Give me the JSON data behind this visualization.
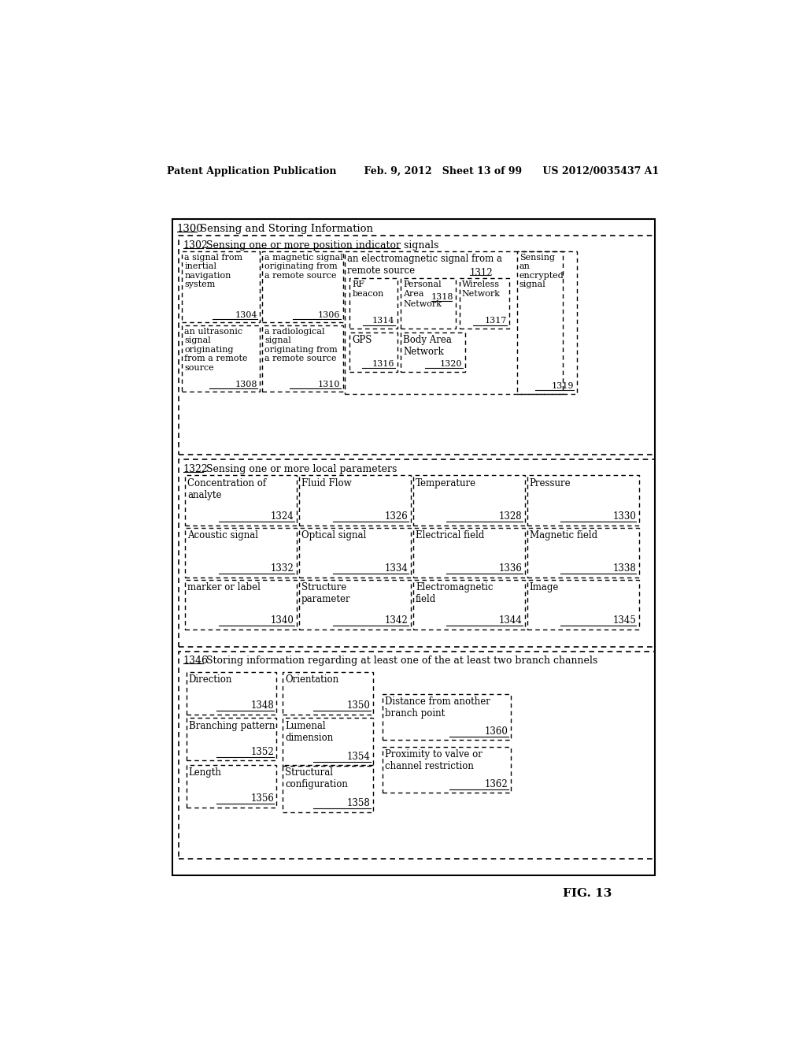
{
  "bg_color": "#ffffff",
  "text_color": "#000000",
  "header_line": "Patent Application Publication        Feb. 9, 2012   Sheet 13 of 99      US 2012/0035437 A1",
  "fig_label": "FIG. 13",
  "main_label": "1300",
  "main_title": "Sensing and Storing Information",
  "s1_label": "1302",
  "s1_title": "Sensing one or more position indicator signals",
  "s2_label": "1322",
  "s2_title": "Sensing one or more local parameters",
  "s3_label": "1346",
  "s3_title": "Storing information regarding at least one of the at least two branch channels"
}
